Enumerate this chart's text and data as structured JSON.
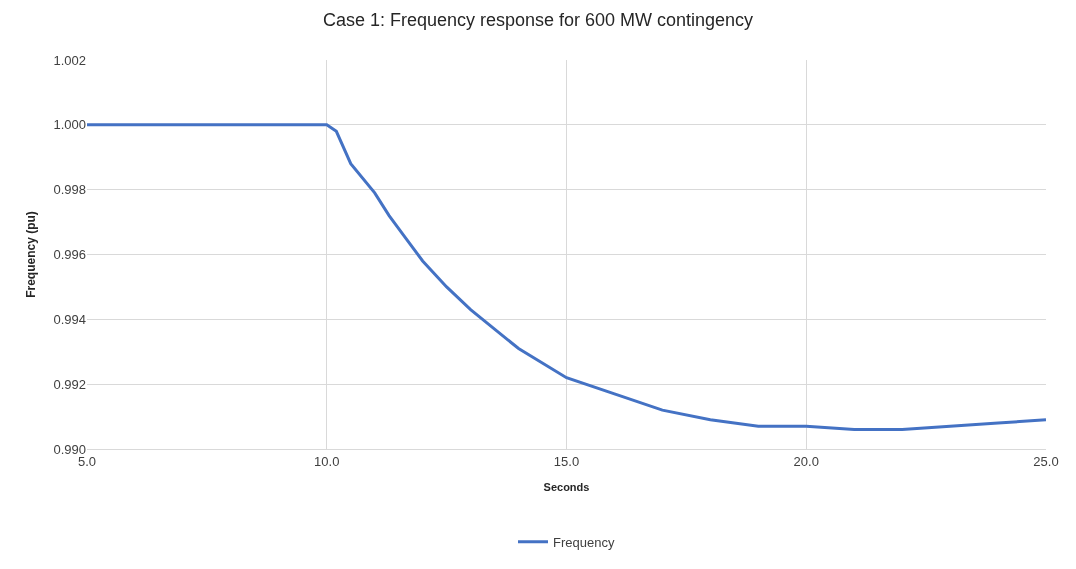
{
  "chart_data": {
    "type": "line",
    "title": "Case 1: Frequency response for 600 MW contingency",
    "xlabel": "Seconds",
    "ylabel": "Frequency (pu)",
    "x": [
      5,
      10,
      10.2,
      10.5,
      11,
      11.3,
      11.6,
      12,
      12.5,
      13,
      13.5,
      14,
      15,
      16,
      17,
      18,
      19,
      20,
      21,
      22,
      23,
      24,
      25
    ],
    "series": [
      {
        "name": "Frequency",
        "color": "#4472c4",
        "values": [
          1.0,
          1.0,
          0.9998,
          0.9988,
          0.9979,
          0.9972,
          0.9966,
          0.9958,
          0.995,
          0.9943,
          0.9937,
          0.9931,
          0.9922,
          0.9917,
          0.9912,
          0.9909,
          0.9907,
          0.9907,
          0.9906,
          0.9906,
          0.9907,
          0.9908,
          0.9909
        ]
      }
    ],
    "xlim": [
      5,
      25
    ],
    "xticks": [
      {
        "value": 5,
        "label": "5.0"
      },
      {
        "value": 10,
        "label": "10.0"
      },
      {
        "value": 15,
        "label": "15.0"
      },
      {
        "value": 20,
        "label": "20.0"
      },
      {
        "value": 25,
        "label": "25.0"
      }
    ],
    "ylim": [
      0.99,
      1.002
    ],
    "yticks": [
      {
        "value": 0.99,
        "label": "0.990"
      },
      {
        "value": 0.992,
        "label": "0.992"
      },
      {
        "value": 0.994,
        "label": "0.994"
      },
      {
        "value": 0.996,
        "label": "0.996"
      },
      {
        "value": 0.998,
        "label": "0.998"
      },
      {
        "value": 1.0,
        "label": "1.000"
      },
      {
        "value": 1.002,
        "label": "1.002"
      }
    ],
    "grid": true,
    "legend": "bottom",
    "marker": "none",
    "line_style": "solid"
  }
}
